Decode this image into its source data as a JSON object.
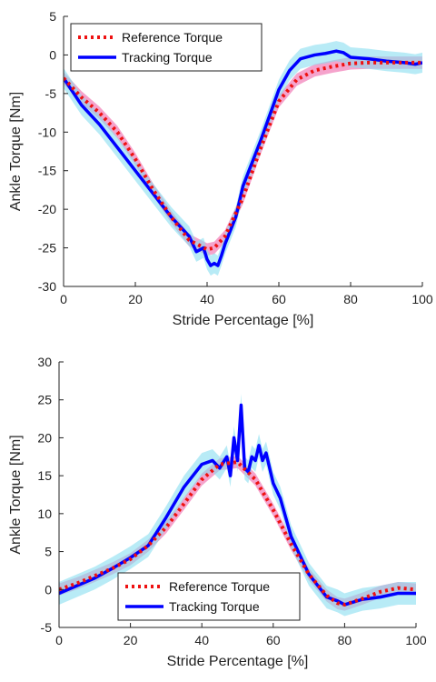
{
  "chart_data": [
    {
      "type": "line",
      "title": "",
      "xlabel": "Stride Percentage [%]",
      "ylabel": "Ankle Torque [Nm]",
      "xlim": [
        0,
        100
      ],
      "ylim": [
        -30,
        5
      ],
      "xticks": [
        0,
        20,
        40,
        60,
        80,
        100
      ],
      "yticks": [
        5,
        0,
        -5,
        -10,
        -15,
        -20,
        -25,
        -30
      ],
      "legend_position": "top-left",
      "series": [
        {
          "name": "Reference Torque",
          "color": "#ee1111",
          "style": "dotted",
          "band_color": "#ee66aa",
          "band_halfwidth": 0.8,
          "x": [
            0,
            5,
            10,
            15,
            20,
            25,
            30,
            35,
            40,
            42,
            45,
            50,
            55,
            60,
            65,
            70,
            75,
            80,
            85,
            90,
            95,
            100
          ],
          "y": [
            -3,
            -5.5,
            -7.5,
            -10,
            -13.5,
            -17.5,
            -21,
            -24,
            -25.2,
            -25,
            -23.5,
            -18.5,
            -12,
            -6,
            -3.2,
            -2,
            -1.5,
            -1.1,
            -1,
            -1,
            -1,
            -1
          ]
        },
        {
          "name": "Tracking Torque",
          "color": "#0000ff",
          "style": "solid",
          "band_color": "#88ddf0",
          "band_halfwidth": 1.3,
          "x": [
            0,
            5,
            10,
            15,
            20,
            25,
            30,
            33,
            35,
            37,
            39,
            40,
            41,
            42,
            43,
            44,
            45,
            48,
            50,
            55,
            60,
            63,
            66,
            70,
            73,
            76,
            78,
            80,
            85,
            90,
            95,
            98,
            100
          ],
          "y": [
            -3,
            -6.5,
            -9,
            -12,
            -15,
            -18,
            -21,
            -22.5,
            -23.5,
            -25.5,
            -25,
            -26.5,
            -27.3,
            -27,
            -27.3,
            -26,
            -24.5,
            -21,
            -17,
            -11,
            -4.5,
            -2,
            -0.5,
            0,
            0.2,
            0.5,
            0.3,
            -0.3,
            -0.5,
            -0.8,
            -1,
            -1.2,
            -1
          ]
        }
      ]
    },
    {
      "type": "line",
      "title": "",
      "xlabel": "Stride Percentage [%]",
      "ylabel": "Ankle Torque [Nm]",
      "xlim": [
        0,
        100
      ],
      "ylim": [
        -5,
        30
      ],
      "xticks": [
        0,
        20,
        40,
        60,
        80,
        100
      ],
      "yticks": [
        30,
        25,
        20,
        15,
        10,
        5,
        0,
        -5
      ],
      "legend_position": "bottom-center",
      "series": [
        {
          "name": "Reference Torque",
          "color": "#ee1111",
          "style": "dotted",
          "band_color": "#ee66aa",
          "band_halfwidth": 0.8,
          "x": [
            0,
            5,
            10,
            15,
            20,
            25,
            30,
            35,
            40,
            45,
            50,
            55,
            60,
            65,
            70,
            75,
            78,
            80,
            85,
            90,
            95,
            100
          ],
          "y": [
            0,
            0.8,
            1.8,
            2.8,
            4,
            5.8,
            8.2,
            11.3,
            14.5,
            16.5,
            16.8,
            14.5,
            10.5,
            6,
            2,
            -0.8,
            -1.8,
            -2,
            -1.2,
            -0.3,
            0.2,
            0
          ]
        },
        {
          "name": "Tracking Torque",
          "color": "#0000ff",
          "style": "solid",
          "band_color": "#88ddf0",
          "band_halfwidth": 1.5,
          "x": [
            0,
            5,
            10,
            15,
            20,
            25,
            30,
            35,
            40,
            43,
            45,
            47,
            48,
            49,
            50,
            51,
            52,
            53,
            54,
            55,
            56,
            57,
            58,
            60,
            62,
            65,
            70,
            75,
            78,
            80,
            85,
            90,
            95,
            100
          ],
          "y": [
            -0.5,
            0.5,
            1.5,
            2.8,
            4.2,
            5.8,
            9.5,
            13.5,
            16.5,
            17,
            16,
            17.5,
            15,
            20,
            17,
            24.3,
            16,
            15.5,
            17.5,
            17,
            19,
            17,
            18,
            14,
            12,
            7,
            2,
            -1,
            -1.5,
            -2,
            -1.3,
            -1,
            -0.5,
            -0.5
          ]
        }
      ]
    }
  ]
}
